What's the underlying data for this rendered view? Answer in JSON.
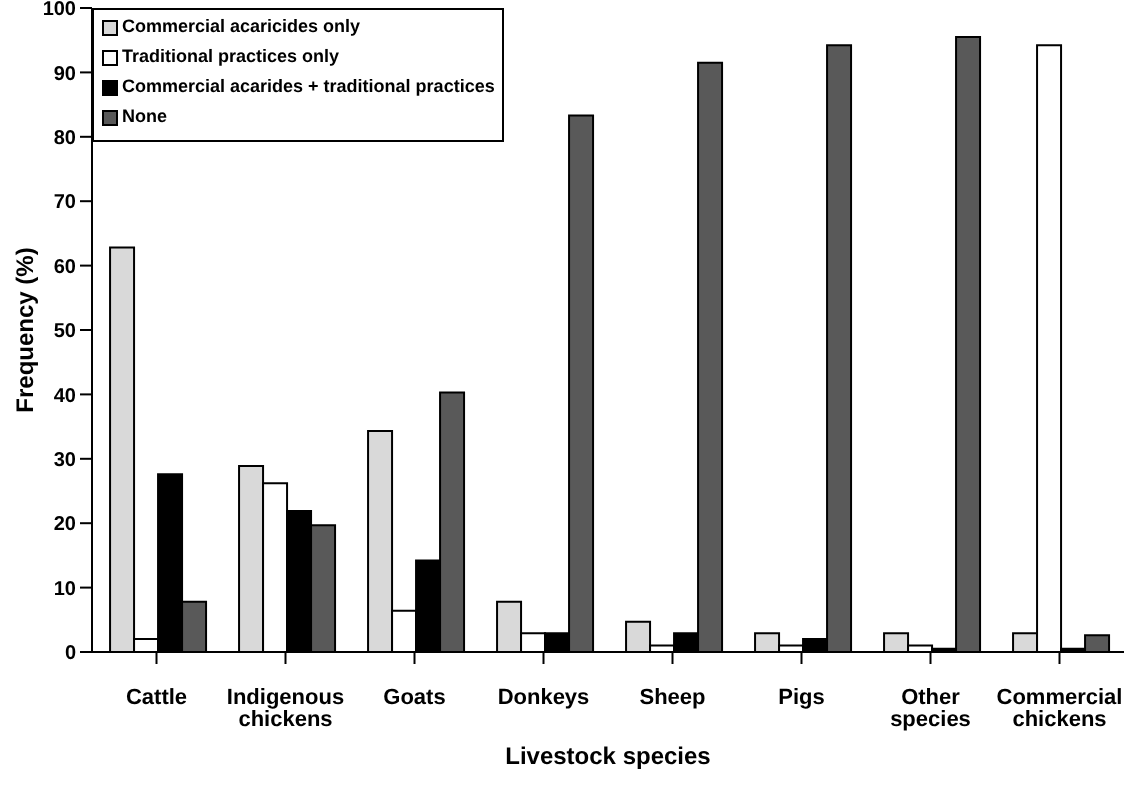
{
  "chart_data": {
    "type": "bar",
    "xlabel": "Livestock species",
    "ylabel": "Frequency (%)",
    "categories": [
      "Cattle",
      "Indigenous chickens",
      "Goats",
      "Donkeys",
      "Sheep",
      "Pigs",
      "Other species",
      "Commercial chickens"
    ],
    "series": [
      {
        "name": "Commercial acaricides only",
        "color": "#d9d9d9",
        "values": [
          62.8,
          28.9,
          34.3,
          7.8,
          4.7,
          2.9,
          2.9,
          2.9
        ]
      },
      {
        "name": "Traditional practices only",
        "color": "#ffffff",
        "values": [
          2,
          26.2,
          6.4,
          2.9,
          1,
          1,
          1,
          94.2
        ]
      },
      {
        "name": "Commercial acarides + traditional practices",
        "color": "#000000",
        "values": [
          27.6,
          21.9,
          14.2,
          2.9,
          2.9,
          2,
          0.5,
          0.5
        ]
      },
      {
        "name": "None",
        "color": "#595959",
        "values": [
          7.8,
          19.7,
          40.3,
          83.3,
          91.5,
          94.2,
          95.5,
          2.6
        ]
      }
    ],
    "ylim": [
      0,
      100
    ],
    "yticks": [
      0,
      10,
      20,
      30,
      40,
      50,
      60,
      70,
      80,
      90,
      100
    ],
    "grid": false,
    "legend": "top left"
  }
}
